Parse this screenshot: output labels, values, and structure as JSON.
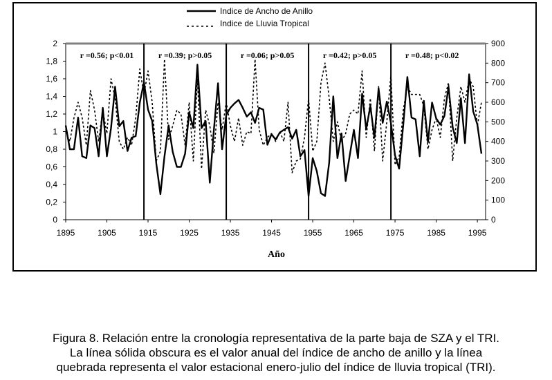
{
  "chart_data": {
    "type": "line",
    "title": "",
    "xlabel": "Año",
    "ylabel_left": "",
    "ylabel_right": "",
    "xlim": [
      1895,
      1997
    ],
    "ylim_left": [
      0,
      2
    ],
    "ylim_right": [
      0,
      900
    ],
    "x_ticks": [
      1895,
      1905,
      1915,
      1925,
      1935,
      1945,
      1955,
      1965,
      1975,
      1985,
      1995
    ],
    "y_left_ticks": [
      "0",
      "0,2",
      "0,4",
      "0,6",
      "0,8",
      "1",
      "1,2",
      "1,4",
      "1,6",
      "1,8",
      "2"
    ],
    "y_right_ticks": [
      "0",
      "100",
      "200",
      "300",
      "400",
      "500",
      "600",
      "700",
      "800",
      "900"
    ],
    "breaks": [
      1914,
      1934,
      1954,
      1974
    ],
    "annotations": [
      {
        "text": "r =0.56; p<0.01",
        "x": 1905
      },
      {
        "text": "r =0.39; p>0.05",
        "x": 1924
      },
      {
        "text": "r =0.06; p>0.05",
        "x": 1944
      },
      {
        "text": "r =0.42; p>0.05",
        "x": 1964
      },
      {
        "text": "r =0.48; p<0.02",
        "x": 1984
      }
    ],
    "legend": [
      {
        "name": "Indice de Ancho de Anillo",
        "style": "solid"
      },
      {
        "name": "Indice de Lluvia Tropical",
        "style": "dashed"
      }
    ],
    "series": [
      {
        "name": "Indice de Ancho de Anillo",
        "axis": "left",
        "style": "solid",
        "x": [
          1895,
          1896,
          1897,
          1898,
          1899,
          1900,
          1901,
          1902,
          1903,
          1904,
          1905,
          1906,
          1907,
          1908,
          1909,
          1910,
          1911,
          1912,
          1913,
          1914,
          1915,
          1916,
          1917,
          1918,
          1919,
          1920,
          1921,
          1922,
          1923,
          1924,
          1925,
          1926,
          1927,
          1928,
          1929,
          1930,
          1931,
          1932,
          1933,
          1934,
          1935,
          1936,
          1937,
          1938,
          1939,
          1940,
          1941,
          1942,
          1943,
          1944,
          1945,
          1946,
          1947,
          1948,
          1949,
          1950,
          1951,
          1952,
          1953,
          1954,
          1955,
          1956,
          1957,
          1958,
          1959,
          1960,
          1961,
          1962,
          1963,
          1964,
          1965,
          1966,
          1967,
          1968,
          1969,
          1970,
          1971,
          1972,
          1973,
          1974,
          1975,
          1976,
          1977,
          1978,
          1979,
          1980,
          1981,
          1982,
          1983,
          1984,
          1985,
          1986,
          1987,
          1988,
          1989,
          1990,
          1991,
          1992,
          1993,
          1994,
          1995,
          1996
        ],
        "y": [
          1.07,
          0.8,
          0.8,
          1.16,
          0.72,
          0.7,
          1.07,
          1.04,
          0.72,
          1.27,
          0.72,
          1.04,
          1.51,
          1.06,
          1.12,
          0.78,
          0.93,
          0.95,
          1.33,
          1.56,
          1.25,
          1.12,
          0.64,
          0.29,
          0.72,
          1.07,
          0.77,
          0.6,
          0.6,
          0.75,
          1.22,
          1.04,
          1.76,
          1.04,
          1.12,
          0.42,
          1.02,
          1.55,
          0.8,
          1.19,
          1.27,
          1.32,
          1.36,
          1.27,
          1.17,
          1.22,
          1.1,
          1.27,
          1.25,
          0.85,
          0.97,
          0.91,
          0.99,
          1.02,
          1.05,
          0.92,
          1.02,
          0.72,
          0.79,
          0.27,
          0.7,
          0.55,
          0.3,
          0.27,
          0.65,
          1.4,
          0.7,
          0.98,
          0.44,
          0.73,
          1.02,
          0.7,
          1.43,
          1.03,
          1.29,
          0.93,
          1.49,
          1.1,
          1.34,
          1.1,
          0.73,
          0.58,
          1.08,
          1.62,
          1.16,
          1.14,
          0.72,
          1.35,
          0.88,
          1.33,
          1.15,
          1.08,
          1.18,
          1.51,
          1.05,
          0.87,
          1.38,
          0.87,
          1.65,
          1.23,
          1.08,
          0.75
        ]
      },
      {
        "name": "Indice de Lluvia Tropical",
        "axis": "right",
        "style": "dashed",
        "x": [
          1895,
          1896,
          1897,
          1898,
          1899,
          1900,
          1901,
          1902,
          1903,
          1904,
          1905,
          1906,
          1907,
          1908,
          1909,
          1910,
          1911,
          1912,
          1913,
          1914,
          1915,
          1916,
          1917,
          1918,
          1919,
          1920,
          1921,
          1922,
          1923,
          1924,
          1925,
          1926,
          1927,
          1928,
          1929,
          1930,
          1931,
          1932,
          1933,
          1934,
          1935,
          1936,
          1937,
          1938,
          1939,
          1940,
          1941,
          1942,
          1943,
          1944,
          1945,
          1946,
          1947,
          1948,
          1949,
          1950,
          1951,
          1952,
          1953,
          1954,
          1955,
          1956,
          1957,
          1958,
          1959,
          1960,
          1961,
          1962,
          1963,
          1964,
          1965,
          1966,
          1967,
          1968,
          1969,
          1970,
          1971,
          1972,
          1973,
          1974,
          1975,
          1976,
          1977,
          1978,
          1979,
          1980,
          1981,
          1982,
          1983,
          1984,
          1985,
          1986,
          1987,
          1988,
          1989,
          1990,
          1991,
          1992,
          1993,
          1994,
          1995,
          1996
        ],
        "y": [
          450,
          400,
          520,
          600,
          520,
          380,
          660,
          560,
          400,
          560,
          440,
          720,
          620,
          400,
          360,
          420,
          380,
          520,
          770,
          640,
          760,
          600,
          300,
          350,
          820,
          410,
          480,
          560,
          540,
          380,
          600,
          300,
          720,
          260,
          560,
          480,
          340,
          600,
          460,
          600,
          480,
          400,
          520,
          380,
          450,
          440,
          820,
          460,
          380,
          420,
          440,
          400,
          450,
          400,
          600,
          240,
          300,
          310,
          420,
          620,
          350,
          400,
          700,
          800,
          620,
          400,
          500,
          400,
          440,
          540,
          560,
          540,
          760,
          420,
          620,
          350,
          680,
          300,
          500,
          740,
          280,
          320,
          560,
          680,
          640,
          640,
          640,
          580,
          360,
          460,
          520,
          420,
          620,
          700,
          300,
          520,
          680,
          600,
          720,
          680,
          480,
          600
        ]
      }
    ]
  },
  "caption": {
    "line1": "Figura 8. Relación entre la cronología representativa de la parte baja de SZA y el TRI.",
    "line2": "La línea sólida obscura es el valor anual del índice de ancho de anillo y la línea",
    "line3": "quebrada representa el valor estacional enero-julio del índice de lluvia tropical (TRI)."
  }
}
